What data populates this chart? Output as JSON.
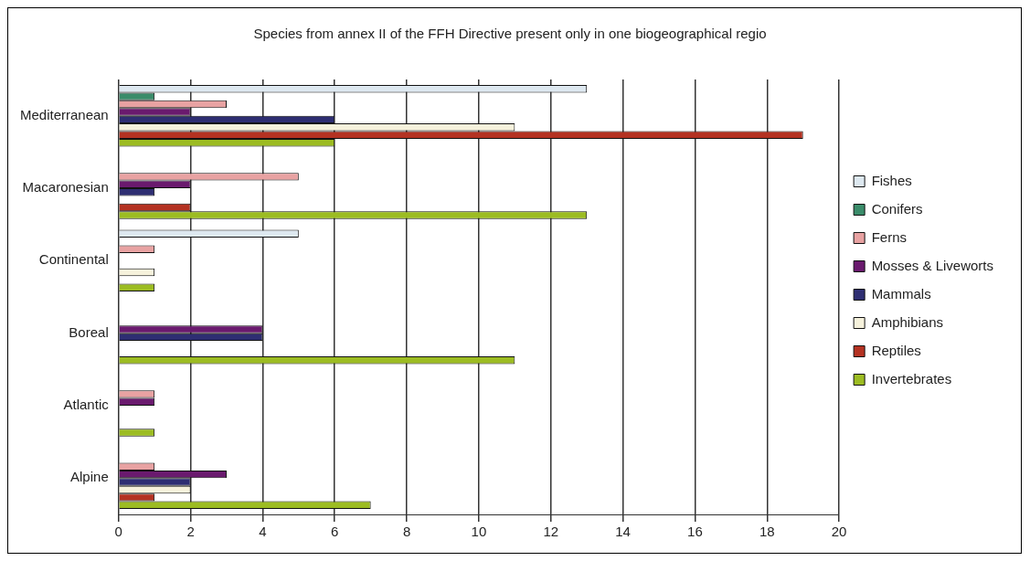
{
  "chart_data": {
    "type": "bar",
    "orientation": "horizontal",
    "title": "Species from annex II of the FFH Directive present only in one biogeographical regio",
    "categories": [
      "Mediterranean",
      "Macaronesian",
      "Continental",
      "Boreal",
      "Atlantic",
      "Alpine"
    ],
    "series": [
      {
        "name": "Fishes",
        "color": "#dde8f0",
        "values": [
          13,
          0,
          5,
          0,
          0,
          0
        ]
      },
      {
        "name": "Conifers",
        "color": "#3a8c6a",
        "values": [
          1,
          0,
          0,
          0,
          0,
          0
        ]
      },
      {
        "name": "Ferns",
        "color": "#e8a2a2",
        "values": [
          3,
          5,
          1,
          0,
          1,
          1
        ]
      },
      {
        "name": "Mosses & Liveworts",
        "color": "#6a1a6e",
        "values": [
          2,
          2,
          0,
          4,
          1,
          3
        ]
      },
      {
        "name": "Mammals",
        "color": "#2e2e72",
        "values": [
          6,
          1,
          0,
          4,
          0,
          2
        ]
      },
      {
        "name": "Amphibians",
        "color": "#f6f2dc",
        "values": [
          11,
          0,
          1,
          0,
          0,
          2
        ]
      },
      {
        "name": "Reptiles",
        "color": "#b43222",
        "values": [
          19,
          2,
          0,
          0,
          0,
          1
        ]
      },
      {
        "name": "Invertebrates",
        "color": "#9cbc22",
        "values": [
          6,
          13,
          1,
          11,
          1,
          7
        ]
      }
    ],
    "xlim": [
      0,
      20
    ],
    "xticks": [
      0,
      2,
      4,
      6,
      8,
      10,
      12,
      14,
      16,
      18,
      20
    ],
    "grid": "x",
    "legend": "right"
  }
}
